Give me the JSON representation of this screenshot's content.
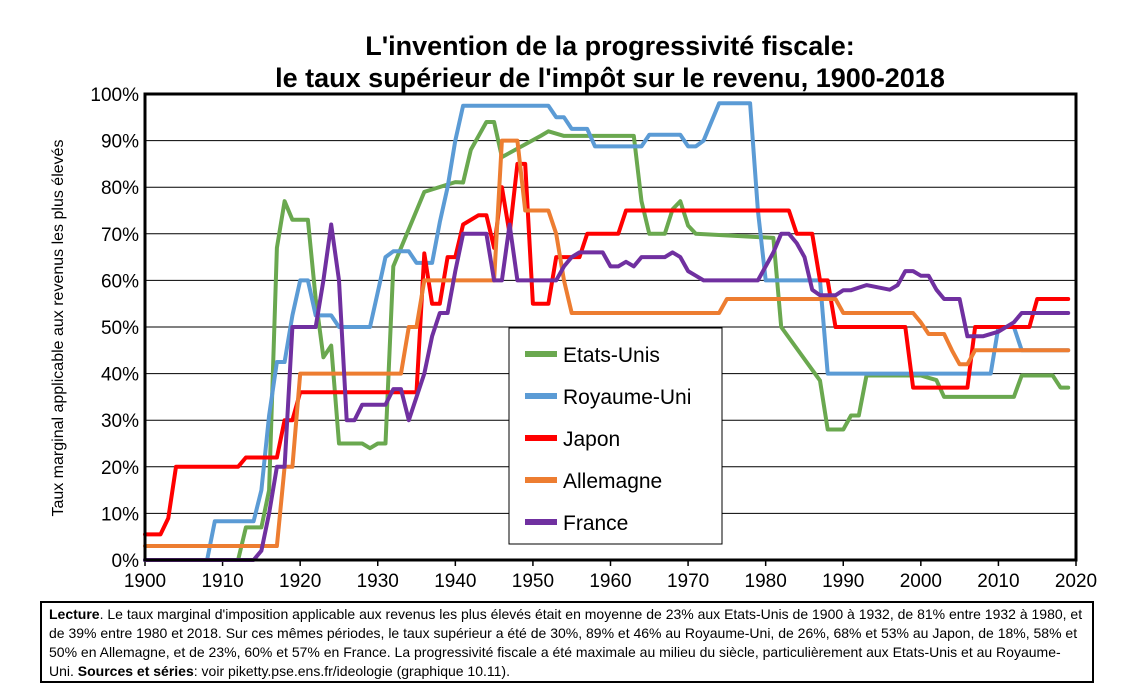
{
  "title_line1": "L'invention de la progressivité fiscale:",
  "title_line2": "le taux supérieur de l'impôt sur le revenu, 1900-2018",
  "chart_data": {
    "type": "line",
    "ylabel": "Taux marginal applicable aux revenus les plus élevés",
    "xlabel": "",
    "xlim": [
      1900,
      2020
    ],
    "ylim": [
      0,
      100
    ],
    "xticks": [
      "1900",
      "1910",
      "1920",
      "1930",
      "1940",
      "1950",
      "1960",
      "1970",
      "1980",
      "1990",
      "2000",
      "2010",
      "2020"
    ],
    "yticks": [
      "0%",
      "10%",
      "20%",
      "30%",
      "40%",
      "50%",
      "60%",
      "70%",
      "80%",
      "90%",
      "100%"
    ],
    "legend_position": "center",
    "series": [
      {
        "name": "Etats-Unis",
        "color": "#6aa84f",
        "points": [
          [
            1900,
            0
          ],
          [
            1912,
            0
          ],
          [
            1913,
            7
          ],
          [
            1915,
            7
          ],
          [
            1916,
            15
          ],
          [
            1917,
            67
          ],
          [
            1918,
            77
          ],
          [
            1919,
            73
          ],
          [
            1921,
            73
          ],
          [
            1922,
            56
          ],
          [
            1923,
            43.5
          ],
          [
            1924,
            46
          ],
          [
            1925,
            25
          ],
          [
            1928,
            25
          ],
          [
            1929,
            24
          ],
          [
            1930,
            25
          ],
          [
            1931,
            25
          ],
          [
            1932,
            63
          ],
          [
            1936,
            79
          ],
          [
            1940,
            81.1
          ],
          [
            1941,
            81
          ],
          [
            1942,
            88
          ],
          [
            1944,
            94
          ],
          [
            1945,
            94
          ],
          [
            1946,
            86.45
          ],
          [
            1951,
            91
          ],
          [
            1952,
            92
          ],
          [
            1954,
            91
          ],
          [
            1963,
            91
          ],
          [
            1964,
            77
          ],
          [
            1965,
            70
          ],
          [
            1967,
            70
          ],
          [
            1968,
            75.25
          ],
          [
            1969,
            77
          ],
          [
            1970,
            71.75
          ],
          [
            1971,
            70
          ],
          [
            1981,
            69.13
          ],
          [
            1982,
            50
          ],
          [
            1987,
            38.5
          ],
          [
            1988,
            28
          ],
          [
            1990,
            28
          ],
          [
            1991,
            31
          ],
          [
            1992,
            31
          ],
          [
            1993,
            39.6
          ],
          [
            2000,
            39.6
          ],
          [
            2001,
            39.1
          ],
          [
            2002,
            38.6
          ],
          [
            2003,
            35
          ],
          [
            2012,
            35
          ],
          [
            2013,
            39.6
          ],
          [
            2017,
            39.6
          ],
          [
            2018,
            37
          ],
          [
            2019,
            37
          ]
        ]
      },
      {
        "name": "Royaume-Uni",
        "color": "#5b9bd5",
        "points": [
          [
            1900,
            0
          ],
          [
            1908,
            0
          ],
          [
            1909,
            8.3
          ],
          [
            1914,
            8.3
          ],
          [
            1915,
            15
          ],
          [
            1916,
            31
          ],
          [
            1917,
            42.5
          ],
          [
            1918,
            42.5
          ],
          [
            1919,
            52.5
          ],
          [
            1920,
            60
          ],
          [
            1921,
            60
          ],
          [
            1922,
            52.5
          ],
          [
            1924,
            52.5
          ],
          [
            1925,
            50
          ],
          [
            1929,
            50
          ],
          [
            1930,
            57.5
          ],
          [
            1931,
            65
          ],
          [
            1932,
            66.25
          ],
          [
            1934,
            66.25
          ],
          [
            1935,
            63.75
          ],
          [
            1937,
            63.75
          ],
          [
            1938,
            72.5
          ],
          [
            1939,
            80
          ],
          [
            1940,
            90
          ],
          [
            1941,
            97.5
          ],
          [
            1952,
            97.5
          ],
          [
            1953,
            95
          ],
          [
            1954,
            95
          ],
          [
            1955,
            92.5
          ],
          [
            1957,
            92.5
          ],
          [
            1958,
            88.75
          ],
          [
            1964,
            88.75
          ],
          [
            1965,
            91.25
          ],
          [
            1969,
            91.25
          ],
          [
            1970,
            88.75
          ],
          [
            1971,
            88.75
          ],
          [
            1972,
            90
          ],
          [
            1974,
            98
          ],
          [
            1978,
            98
          ],
          [
            1979,
            75
          ],
          [
            1980,
            60
          ],
          [
            1987,
            60
          ],
          [
            1988,
            40
          ],
          [
            2009,
            40
          ],
          [
            2010,
            50
          ],
          [
            2012,
            50
          ],
          [
            2013,
            45
          ],
          [
            2019,
            45
          ]
        ]
      },
      {
        "name": "Japon",
        "color": "#ff0000",
        "points": [
          [
            1900,
            5.5
          ],
          [
            1902,
            5.5
          ],
          [
            1903,
            9
          ],
          [
            1904,
            20
          ],
          [
            1912,
            20
          ],
          [
            1913,
            22
          ],
          [
            1917,
            22
          ],
          [
            1918,
            30
          ],
          [
            1919,
            30
          ],
          [
            1920,
            36
          ],
          [
            1935,
            36
          ],
          [
            1936,
            65.8
          ],
          [
            1937,
            55
          ],
          [
            1938,
            55
          ],
          [
            1939,
            65
          ],
          [
            1940,
            65
          ],
          [
            1941,
            72
          ],
          [
            1943,
            74
          ],
          [
            1944,
            74
          ],
          [
            1945,
            67
          ],
          [
            1946,
            80
          ],
          [
            1947,
            70
          ],
          [
            1948,
            85
          ],
          [
            1949,
            85
          ],
          [
            1950,
            55
          ],
          [
            1952,
            55
          ],
          [
            1953,
            65
          ],
          [
            1956,
            65
          ],
          [
            1957,
            70
          ],
          [
            1961,
            70
          ],
          [
            1962,
            75
          ],
          [
            1983,
            75
          ],
          [
            1984,
            70
          ],
          [
            1986,
            70
          ],
          [
            1987,
            60
          ],
          [
            1988,
            60
          ],
          [
            1989,
            50
          ],
          [
            1998,
            50
          ],
          [
            1999,
            37
          ],
          [
            2006,
            37
          ],
          [
            2007,
            50
          ],
          [
            2012,
            50
          ],
          [
            2013,
            50
          ],
          [
            2014,
            50
          ],
          [
            2015,
            56
          ],
          [
            2019,
            56
          ]
        ]
      },
      {
        "name": "Allemagne",
        "color": "#ed7d31",
        "points": [
          [
            1900,
            3
          ],
          [
            1917,
            3
          ],
          [
            1918,
            20
          ],
          [
            1919,
            20
          ],
          [
            1920,
            40
          ],
          [
            1933,
            40
          ],
          [
            1934,
            50
          ],
          [
            1935,
            50
          ],
          [
            1936,
            60
          ],
          [
            1945,
            60
          ],
          [
            1946,
            90
          ],
          [
            1948,
            90
          ],
          [
            1949,
            75
          ],
          [
            1952,
            75
          ],
          [
            1953,
            70
          ],
          [
            1954,
            60
          ],
          [
            1955,
            53
          ],
          [
            1974,
            53
          ],
          [
            1975,
            56
          ],
          [
            1989,
            56
          ],
          [
            1990,
            53
          ],
          [
            1999,
            53
          ],
          [
            2000,
            51
          ],
          [
            2001,
            48.5
          ],
          [
            2003,
            48.5
          ],
          [
            2004,
            45
          ],
          [
            2005,
            42
          ],
          [
            2006,
            42
          ],
          [
            2007,
            45
          ],
          [
            2019,
            45
          ]
        ]
      },
      {
        "name": "France",
        "color": "#7030a0",
        "points": [
          [
            1900,
            0
          ],
          [
            1914,
            0
          ],
          [
            1915,
            2
          ],
          [
            1916,
            10
          ],
          [
            1917,
            20
          ],
          [
            1918,
            20
          ],
          [
            1919,
            50
          ],
          [
            1922,
            50
          ],
          [
            1923,
            60
          ],
          [
            1924,
            72
          ],
          [
            1925,
            60
          ],
          [
            1926,
            30
          ],
          [
            1927,
            30
          ],
          [
            1928,
            33.33
          ],
          [
            1931,
            33.33
          ],
          [
            1932,
            36.67
          ],
          [
            1933,
            36.67
          ],
          [
            1934,
            30
          ],
          [
            1936,
            40
          ],
          [
            1937,
            48
          ],
          [
            1938,
            53
          ],
          [
            1939,
            53
          ],
          [
            1940,
            62
          ],
          [
            1941,
            70
          ],
          [
            1943,
            70
          ],
          [
            1944,
            70
          ],
          [
            1945,
            60
          ],
          [
            1946,
            60
          ],
          [
            1947,
            72
          ],
          [
            1948,
            60
          ],
          [
            1953,
            60
          ],
          [
            1954,
            63
          ],
          [
            1955,
            65
          ],
          [
            1956,
            66
          ],
          [
            1959,
            66
          ],
          [
            1960,
            63
          ],
          [
            1961,
            63
          ],
          [
            1962,
            64
          ],
          [
            1963,
            63
          ],
          [
            1964,
            65
          ],
          [
            1967,
            65
          ],
          [
            1968,
            66
          ],
          [
            1969,
            65
          ],
          [
            1970,
            62
          ],
          [
            1971,
            61
          ],
          [
            1972,
            60
          ],
          [
            1979,
            60
          ],
          [
            1981,
            66
          ],
          [
            1982,
            70
          ],
          [
            1983,
            70
          ],
          [
            1984,
            68
          ],
          [
            1985,
            65
          ],
          [
            1986,
            58
          ],
          [
            1987,
            56.8
          ],
          [
            1989,
            56.8
          ],
          [
            1990,
            57.9
          ],
          [
            1991,
            57.9
          ],
          [
            1993,
            59
          ],
          [
            1996,
            58
          ],
          [
            1997,
            59
          ],
          [
            1998,
            62
          ],
          [
            1999,
            62
          ],
          [
            2000,
            61
          ],
          [
            2001,
            61
          ],
          [
            2002,
            58
          ],
          [
            2003,
            56
          ],
          [
            2005,
            56
          ],
          [
            2006,
            48
          ],
          [
            2008,
            48
          ],
          [
            2010,
            49
          ],
          [
            2012,
            51
          ],
          [
            2013,
            53
          ],
          [
            2019,
            53
          ]
        ]
      }
    ]
  },
  "lecture": {
    "label": "Lecture",
    "text": ". Le taux marginal d'imposition applicable aux revenus les plus élevés était en moyenne de 23% aux Etats-Unis de 1900 à 1932, de 81% entre 1932 à 1980, et de 39% entre 1980 et 2018. Sur ces mêmes périodes, le taux supérieur a été de 30%, 89% et 46% au Royaume-Uni, de 26%, 68% et 53% au Japon, de 18%, 58% et 50% en Allemagne, et de 23%, 60% et 57% en France. La progressivité fiscale a été maximale au milieu du siècle, particulièrement aux Etats-Unis et au Royaume-Uni. ",
    "sources_label": "Sources et séries",
    "sources_text": ": voir piketty.pse.ens.fr/ideologie (graphique 10.11)."
  }
}
